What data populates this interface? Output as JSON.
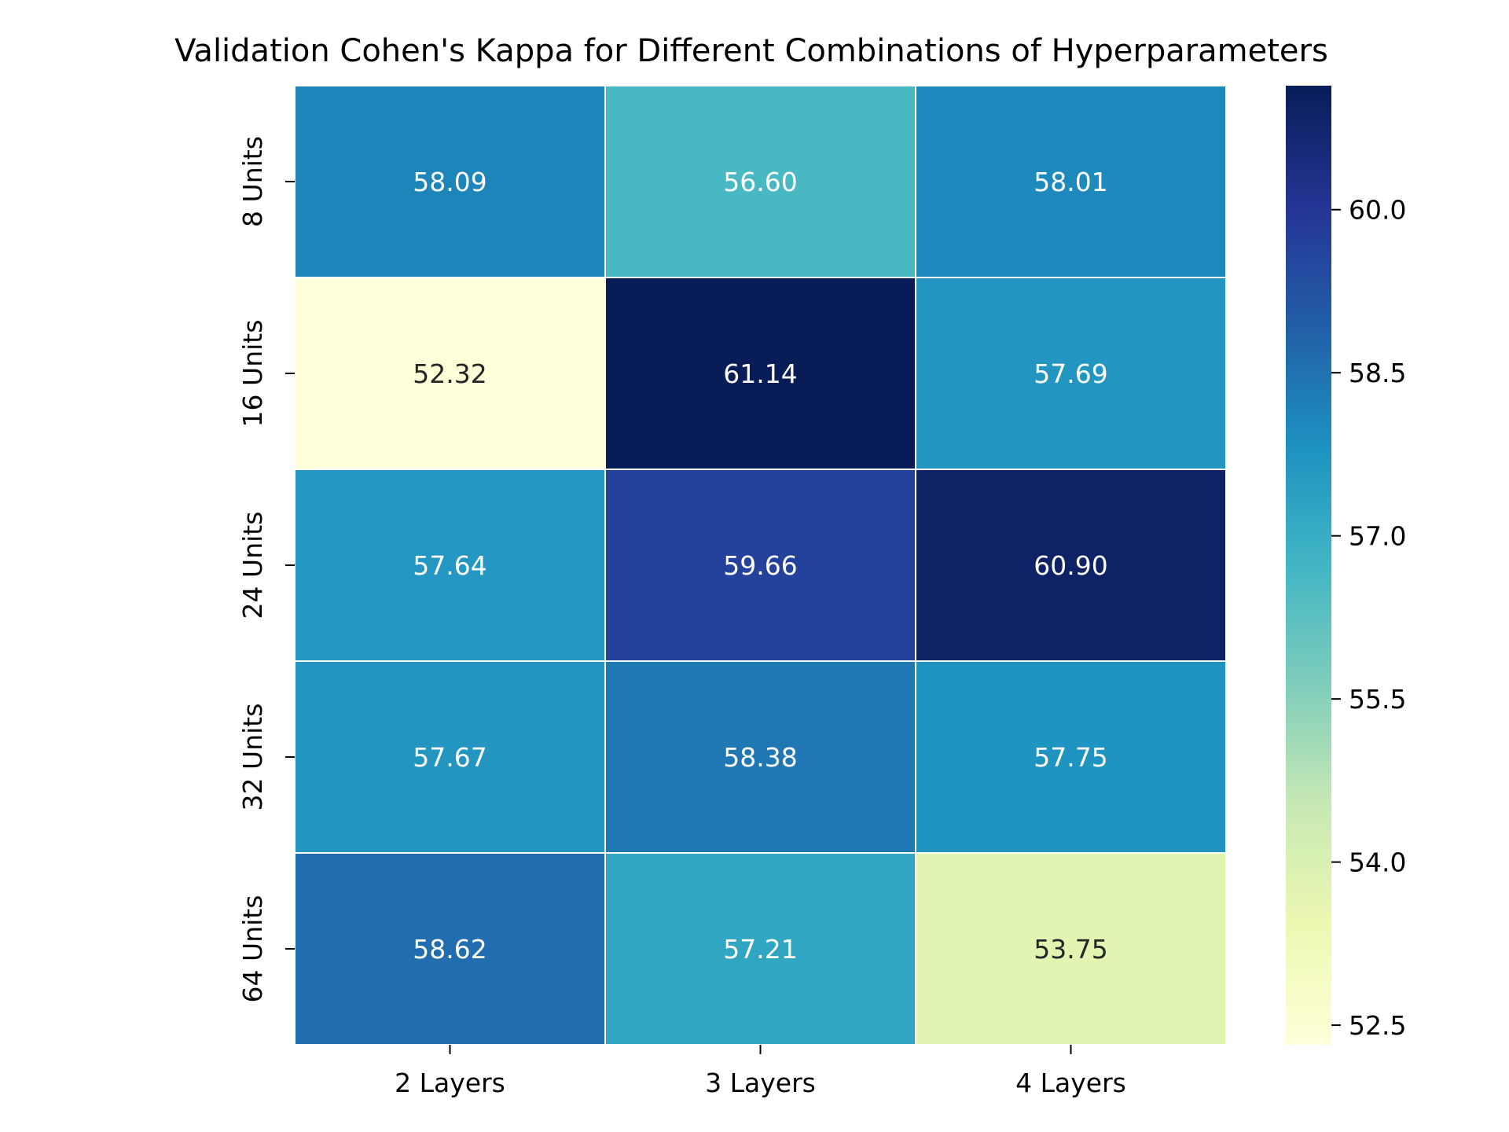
{
  "chart_data": {
    "type": "heatmap",
    "title": "Validation Cohen's Kappa for Different Combinations of Hyperparameters",
    "x_categories": [
      "2 Layers",
      "3 Layers",
      "4 Layers"
    ],
    "y_categories": [
      "8 Units",
      "16 Units",
      "24 Units",
      "32 Units",
      "64 Units"
    ],
    "values": [
      [
        58.09,
        56.6,
        58.01
      ],
      [
        52.32,
        61.14,
        57.69
      ],
      [
        57.64,
        59.66,
        60.9
      ],
      [
        57.67,
        58.38,
        57.75
      ],
      [
        58.62,
        57.21,
        53.75
      ]
    ],
    "cell_labels": [
      [
        "58.09",
        "56.60",
        "58.01"
      ],
      [
        "52.32",
        "61.14",
        "57.69"
      ],
      [
        "57.64",
        "59.66",
        "60.90"
      ],
      [
        "57.67",
        "58.38",
        "57.75"
      ],
      [
        "58.62",
        "57.21",
        "53.75"
      ]
    ],
    "colormap": "YlGnBu",
    "color_range": [
      52.32,
      61.14
    ],
    "colorbar_ticks": [
      52.5,
      54.0,
      55.5,
      57.0,
      58.5,
      60.0
    ],
    "colorbar_tick_labels": [
      "52.5",
      "54.0",
      "55.5",
      "57.0",
      "58.5",
      "60.0"
    ],
    "grid": false,
    "cell_separator_color": "#ffffff"
  }
}
